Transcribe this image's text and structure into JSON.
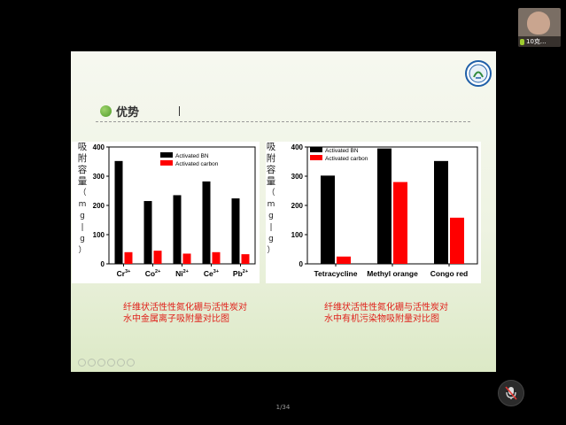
{
  "participant": {
    "name": "10克..."
  },
  "slide": {
    "section_title": "优势",
    "left_caption": [
      "纤维状活性性氮化硼与活性炭对",
      "水中金属离子吸附量对比图"
    ],
    "right_caption": [
      "纤维状活性性氮化硼与活性炭对",
      "水中有机污染物吸附量对比图"
    ]
  },
  "chart_data": [
    {
      "type": "bar",
      "categories": [
        "Cr3+",
        "Co2+",
        "Ni2+",
        "Ce3+",
        "Pb2+"
      ],
      "series": [
        {
          "name": "Activated BN",
          "values": [
            352,
            215,
            235,
            282,
            224
          ]
        },
        {
          "name": "Activated carbon",
          "values": [
            40,
            45,
            35,
            40,
            33
          ]
        }
      ],
      "ylabel_chars": [
        "吸",
        "附",
        "容",
        "量",
        "（",
        "m",
        "g",
        "|",
        "g",
        "）"
      ],
      "ylim": [
        0,
        400
      ],
      "yticks": [
        0,
        100,
        200,
        300,
        400
      ],
      "colors": [
        "#000000",
        "#ff0000"
      ],
      "legend": "top-right"
    },
    {
      "type": "bar",
      "categories": [
        "Tetracycline",
        "Methyl orange",
        "Congo red"
      ],
      "series": [
        {
          "name": "Activated BN",
          "values": [
            302,
            395,
            352
          ]
        },
        {
          "name": "Activated carbon",
          "values": [
            25,
            280,
            158
          ]
        }
      ],
      "ylabel_chars": [
        "吸",
        "附",
        "容",
        "量",
        "（",
        "m",
        "g",
        "|",
        "g",
        "）"
      ],
      "ylim": [
        0,
        400
      ],
      "yticks": [
        0,
        100,
        200,
        300,
        400
      ],
      "colors": [
        "#000000",
        "#ff0000"
      ],
      "legend": "top-left"
    }
  ],
  "footer": {
    "page": "1/34"
  }
}
